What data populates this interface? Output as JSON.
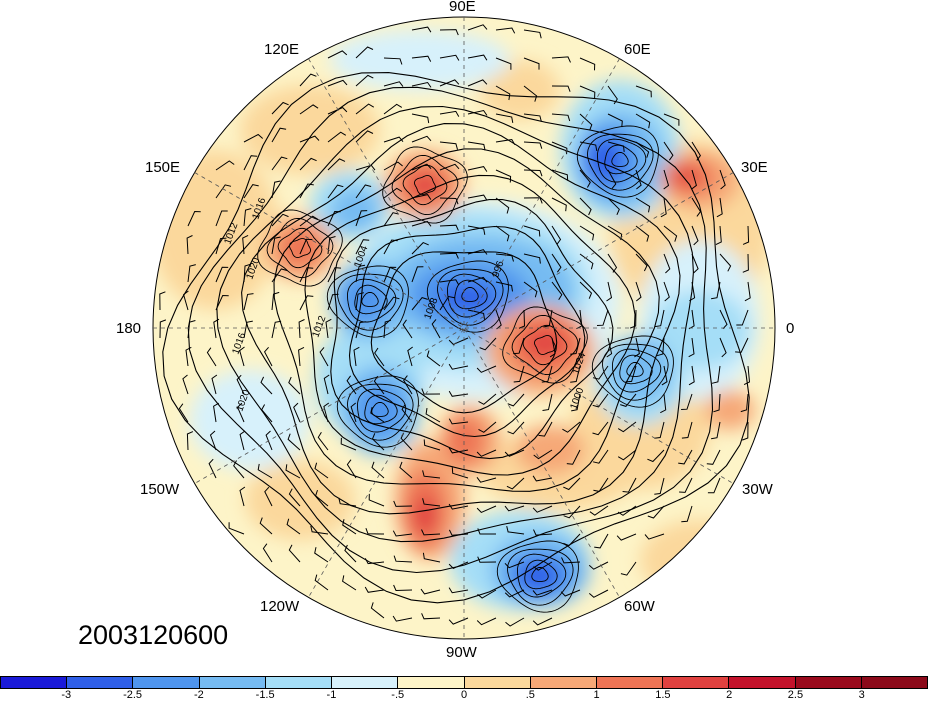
{
  "map": {
    "longitude_labels": {
      "n": "90E",
      "nne": "60E",
      "ene": "30E",
      "e": "0",
      "ese": "30W",
      "sse": "60W",
      "s": "90W",
      "ssw": "120W",
      "wsw": "150W",
      "w": "180",
      "wnw": "150E",
      "nnw": "120E"
    },
    "isobar_labels": [
      "1012",
      "1016",
      "1020",
      "1004",
      "1008",
      "1012",
      "1016",
      "1020",
      "1024",
      "1000",
      "996"
    ],
    "date_stamp": "2003120600",
    "projection": "polar-stereographic-north",
    "colors": {
      "neg3": "#1a1ad8",
      "neg25": "#2f5fe8",
      "neg2": "#4f95ee",
      "neg15": "#76bbf2",
      "neg1": "#a5def7",
      "neg05": "#d7f1fb",
      "pos0": "#fdf4c8",
      "pos05": "#fbd89c",
      "pos1": "#f6a877",
      "pos15": "#ee7455",
      "pos2": "#e0413f",
      "pos25": "#c4122b",
      "pos3": "#9a0a1c"
    }
  },
  "colorbar": {
    "ticks": [
      "-3",
      "-2.5",
      "-2",
      "-1.5",
      "-1",
      "-.5",
      "0",
      ".5",
      "1",
      "1.5",
      "2",
      "2.5",
      "3"
    ],
    "colors": [
      "#1a1ad8",
      "#2f5fe8",
      "#4f95ee",
      "#76bbf2",
      "#a5def7",
      "#d7f1fb",
      "#fdf4c8",
      "#fbd89c",
      "#f6a877",
      "#ee7455",
      "#e0413f",
      "#c4122b",
      "#9a0a1c",
      "#8c0a1a"
    ]
  }
}
